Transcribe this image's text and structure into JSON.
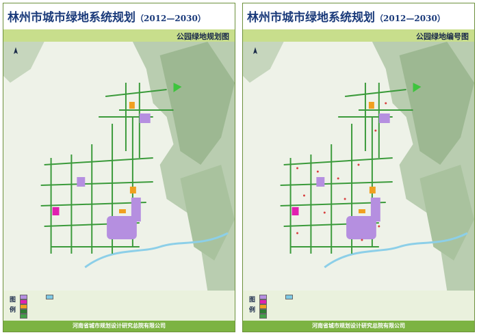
{
  "panels": [
    {
      "title_main": "林州市城市绿地系统规划",
      "title_years": "（2012—2030）",
      "subtitle": "公园绿地规划图",
      "legend_heading": "图例",
      "footer": "河南省城市规划设计研究总院有限公司"
    },
    {
      "title_main": "林州市城市绿地系统规划",
      "title_years": "（2012—2030）",
      "subtitle": "公园绿地编号图",
      "legend_heading": "图例",
      "footer": "河南省城市规划设计研究总院有限公司"
    }
  ],
  "colors": {
    "title": "#1a3a7a",
    "strip": "#c8de8c",
    "footer": "#7cb342",
    "mountain": "#9db892",
    "city_road": "#3a9a3a",
    "park_purple": "#b58fe0",
    "park_magenta": "#e020b0",
    "park_orange": "#f0a020",
    "river": "#8ccfe8"
  },
  "legend_swatches": [
    "#b58fe0",
    "#e020b0",
    "#f0a020",
    "#2e7d32",
    "#43a047",
    "#7ec8e3"
  ],
  "icons": [
    "north-arrow-icon"
  ]
}
